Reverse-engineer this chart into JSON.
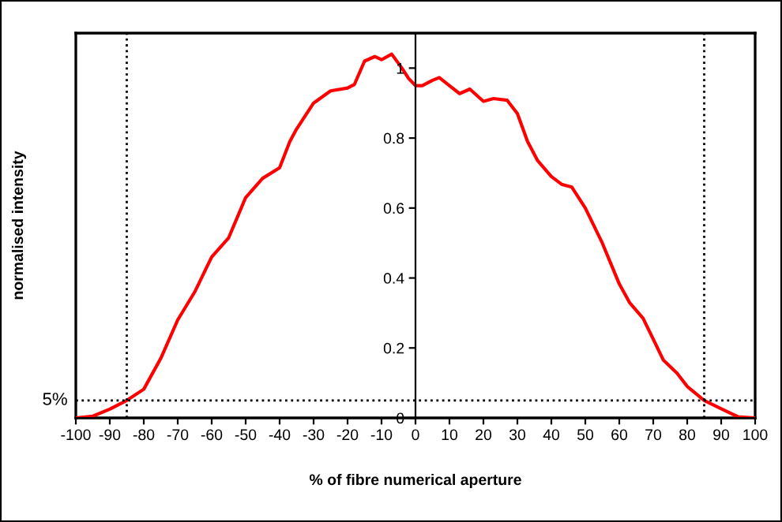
{
  "chart_data": {
    "type": "line",
    "xlabel": "% of fibre numerical aperture",
    "ylabel": "normalised intensity",
    "xlim": [
      -100,
      100
    ],
    "ylim": [
      0,
      1.1
    ],
    "xticks": [
      -100,
      -90,
      -80,
      -70,
      -60,
      -50,
      -40,
      -30,
      -20,
      -10,
      0,
      10,
      20,
      30,
      40,
      50,
      60,
      70,
      80,
      90,
      100
    ],
    "yticks": [
      0,
      0.2,
      0.4,
      0.6,
      0.8,
      1
    ],
    "grid": false,
    "marker": "none",
    "line_style": "solid",
    "series": [
      {
        "color": "#ff0000",
        "x": [
          -100,
          -95,
          -90,
          -85,
          -80,
          -75,
          -70,
          -65,
          -60,
          -55,
          -50,
          -45,
          -40,
          -37,
          -35,
          -30,
          -25,
          -20,
          -18,
          -15,
          -12,
          -10,
          -7,
          -4,
          -2,
          0,
          2,
          5,
          7,
          10,
          13,
          16,
          20,
          23,
          27,
          30,
          33,
          36,
          40,
          43,
          46,
          50,
          55,
          60,
          63,
          67,
          70,
          73,
          77,
          80,
          85,
          90,
          95,
          100
        ],
        "values": [
          0,
          0.005,
          0.025,
          0.05,
          0.082,
          0.17,
          0.28,
          0.36,
          0.46,
          0.515,
          0.63,
          0.685,
          0.715,
          0.79,
          0.826,
          0.9,
          0.935,
          0.943,
          0.953,
          1.02,
          1.033,
          1.024,
          1.04,
          1.0,
          0.97,
          0.95,
          0.95,
          0.965,
          0.973,
          0.95,
          0.927,
          0.94,
          0.905,
          0.913,
          0.908,
          0.87,
          0.79,
          0.735,
          0.69,
          0.668,
          0.66,
          0.6,
          0.5,
          0.383,
          0.33,
          0.285,
          0.225,
          0.165,
          0.128,
          0.09,
          0.05,
          0.026,
          0.003,
          0
        ]
      }
    ],
    "ref_lines": [
      {
        "axis": "y",
        "value": 0.05,
        "label": "5%",
        "line_style": "dotted",
        "color": "#000000"
      },
      {
        "axis": "x",
        "value": -85,
        "line_style": "dotted",
        "color": "#000000"
      },
      {
        "axis": "x",
        "value": 85,
        "line_style": "dotted",
        "color": "#000000"
      }
    ]
  }
}
